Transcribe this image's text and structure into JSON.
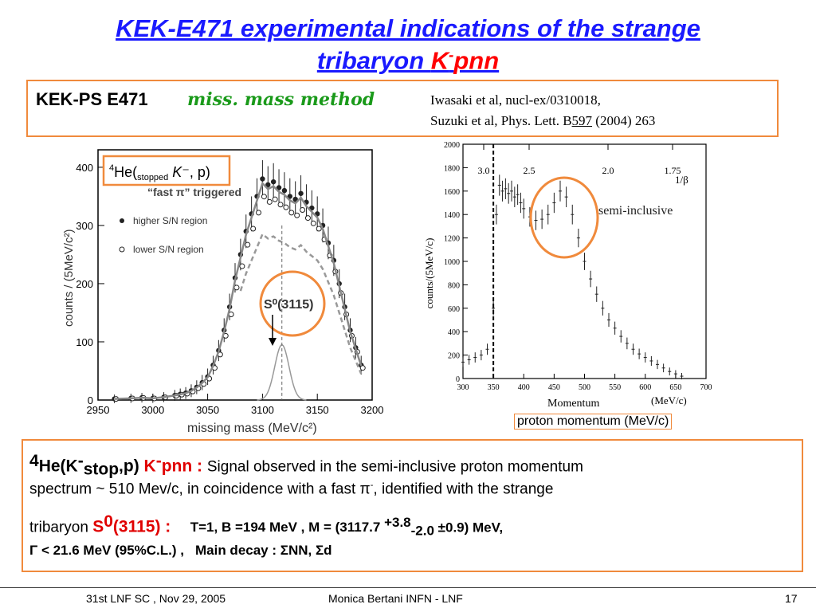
{
  "title": {
    "line1": "KEK-E471 experimental indications of the strange",
    "line2_a": "tribaryon ",
    "line2_b": "K",
    "line2_sup": "-",
    "line2_c": "pnn"
  },
  "topbox": {
    "label": "KEK-PS E471",
    "method": "miss. mass method",
    "ref1": "Iwasaki et al, nucl-ex/0310018,",
    "ref2_a": "Suzuki et al, Phys. Lett. B",
    "ref2_vol": "597",
    "ref2_b": " (2004) 263"
  },
  "left_plot": {
    "legend_reaction_a": "He(",
    "legend_sup": "4",
    "legend_sub": "stopped",
    "legend_reaction_b": " K",
    "legend_reaction_c": "⁻, p)",
    "trigger": "“fast π” triggered",
    "series1": "higher S/N region",
    "series2": "lower S/N region",
    "annotation": "S⁰(3115)",
    "xlabel": "missing mass (MeV/c²)",
    "ylabel": "counts / (5MeV/c²)",
    "xticks": [
      "2950",
      "3000",
      "3050",
      "3100",
      "3150",
      "3200"
    ],
    "yticks": [
      "0",
      "100",
      "200",
      "300",
      "400"
    ]
  },
  "right_plot": {
    "ylabel": "counts/(5MeV/c)",
    "xlabel": "Momentum",
    "xunit": "(MeV/c)",
    "top_axis_label": "1/β",
    "top_ticks": [
      "3.0",
      "2.5",
      "2.0",
      "1.75"
    ],
    "annotation": "semi-inclusive",
    "xticks": [
      "300",
      "350",
      "400",
      "450",
      "500",
      "550",
      "600",
      "650",
      "700"
    ],
    "yticks": [
      "0",
      "200",
      "400",
      "600",
      "800",
      "1000",
      "1200",
      "1400",
      "1600",
      "1800",
      "2000"
    ]
  },
  "caption": "proton momentum (MeV/c)",
  "bottombox": {
    "l1_a": "He(K",
    "l1_sup4": "4",
    "l1_supm": "-",
    "l1_sub": "stop",
    "l1_b": ",p) ",
    "l1_c": "K",
    "l1_c_sup": "-",
    "l1_d": "pnn : ",
    "l1_e": "Signal observed in the semi-inclusive proton momentum",
    "l2": "spectrum ~ 510 Mev/c, in coincidence with a fast π",
    "l2_sup": "-",
    "l2_b": ",  identified with the strange",
    "l3_a": "tribaryon ",
    "l3_b": "S",
    "l3_sup": "0",
    "l3_c": "(3115) :",
    "l3_d": "T=1, B =194 MeV ,  M = (3117.7 ",
    "l3_sup2": "+3.8",
    "l3_sub2": "-2.0",
    "l3_e": " ±0.9) MeV,",
    "l4_a": "Γ < 21.6 MeV (95%C.L.) ,",
    "l4_b": "Main decay : ΣNN, Σd"
  },
  "footer": {
    "left": "31st LNF SC , Nov 29, 2005",
    "center": "Monica Bertani INFN - LNF",
    "page": "17"
  },
  "chart_data": [
    {
      "type": "scatter",
      "x": [
        2965,
        2980,
        2990,
        3000,
        3010,
        3020,
        3025,
        3030,
        3035,
        3040,
        3045,
        3050,
        3055,
        3060,
        3065,
        3070,
        3075,
        3080,
        3085,
        3090,
        3095,
        3100,
        3105,
        3110,
        3115,
        3120,
        3125,
        3130,
        3135,
        3140,
        3145,
        3150,
        3155,
        3160,
        3165,
        3170,
        3175,
        3180,
        3185,
        3190
      ],
      "values": [
        2,
        3,
        4,
        3,
        5,
        8,
        10,
        12,
        16,
        22,
        30,
        40,
        60,
        85,
        120,
        160,
        210,
        250,
        290,
        320,
        350,
        380,
        370,
        375,
        365,
        360,
        350,
        345,
        355,
        340,
        330,
        320,
        300,
        270,
        240,
        200,
        160,
        120,
        90,
        60
      ],
      "series": [
        {
          "name": "higher S/N region"
        },
        {
          "name": "lower S/N region"
        }
      ],
      "xlabel": "missing mass (MeV/c²)",
      "ylabel": "counts / (5MeV/c²)",
      "xlim": [
        2950,
        3200
      ],
      "ylim": [
        0,
        430
      ]
    },
    {
      "type": "scatter",
      "x": [
        300,
        310,
        320,
        330,
        340,
        350,
        355,
        360,
        365,
        370,
        375,
        380,
        385,
        390,
        395,
        400,
        410,
        420,
        430,
        440,
        450,
        460,
        470,
        480,
        490,
        500,
        510,
        520,
        530,
        540,
        550,
        560,
        570,
        580,
        590,
        600,
        610,
        620,
        630,
        640,
        650,
        660
      ],
      "values": [
        140,
        160,
        180,
        200,
        250,
        600,
        1400,
        1650,
        1600,
        1620,
        1580,
        1600,
        1550,
        1570,
        1500,
        1450,
        1380,
        1350,
        1360,
        1400,
        1500,
        1600,
        1550,
        1400,
        1200,
        1000,
        850,
        720,
        600,
        500,
        430,
        360,
        300,
        250,
        210,
        180,
        150,
        120,
        90,
        60,
        40,
        20
      ],
      "ylabel": "counts/(5MeV/c)",
      "xlabel": "Momentum",
      "xlim": [
        300,
        700
      ],
      "ylim": [
        0,
        2000
      ]
    }
  ]
}
